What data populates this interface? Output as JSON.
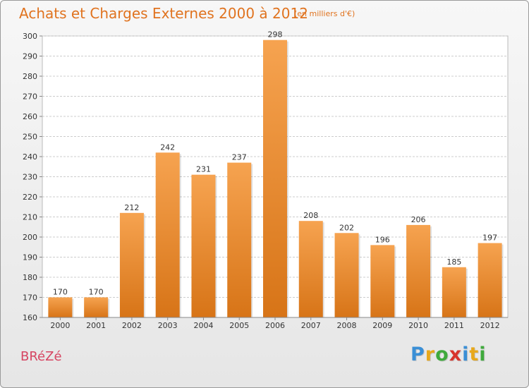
{
  "header": {
    "title": "Achats et Charges Externes 2000 à 2012",
    "subtitle": "(en milliers d'€)"
  },
  "footer": {
    "commune": "BRéZé",
    "brand_letters": [
      "P",
      "r",
      "o",
      "x",
      "i",
      "t",
      "i"
    ],
    "brand_colors": [
      "#3a8fd6",
      "#e8a81b",
      "#3faa3c",
      "#d8342c",
      "#3a8fd6",
      "#e8a81b",
      "#3faa3c"
    ]
  },
  "colors": {
    "bar_top": "#f6a350",
    "bar_bottom": "#d77417",
    "grid": "#cccccc",
    "axis_text": "#333333"
  },
  "chart_data": {
    "type": "bar",
    "categories": [
      "2000",
      "2001",
      "2002",
      "2003",
      "2004",
      "2005",
      "2006",
      "2007",
      "2008",
      "2009",
      "2010",
      "2011",
      "2012"
    ],
    "values": [
      170,
      170,
      212,
      242,
      231,
      237,
      298,
      208,
      202,
      196,
      206,
      185,
      197
    ],
    "ylim": [
      160,
      300
    ],
    "yticks": [
      160,
      170,
      180,
      190,
      200,
      210,
      220,
      230,
      240,
      250,
      260,
      270,
      280,
      290,
      300
    ],
    "grid": true,
    "xlabel": "",
    "ylabel": ""
  }
}
